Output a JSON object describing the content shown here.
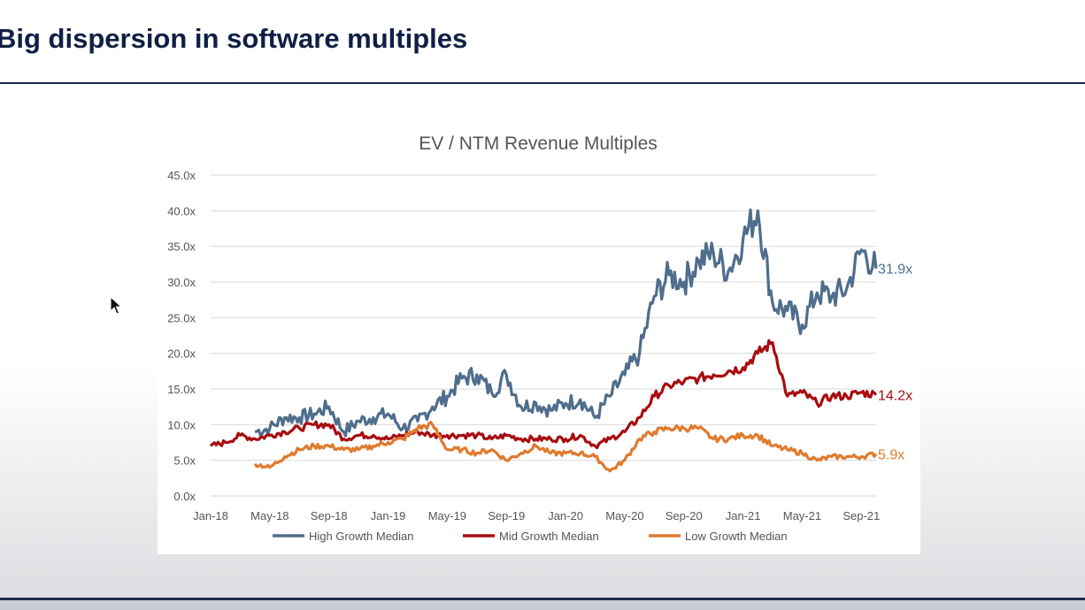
{
  "slide": {
    "title": "Big dispersion in software multiples"
  },
  "chart_data": {
    "type": "line",
    "title": "EV / NTM Revenue Multiples",
    "xlabel": "",
    "ylabel": "",
    "ylim": [
      0,
      45
    ],
    "y_ticks": [
      "0.0x",
      "5.0x",
      "10.0x",
      "15.0x",
      "20.0x",
      "25.0x",
      "30.0x",
      "35.0x",
      "40.0x",
      "45.0x"
    ],
    "x_ticks": [
      "Jan-18",
      "May-18",
      "Sep-18",
      "Jan-19",
      "May-19",
      "Sep-19",
      "Jan-20",
      "May-20",
      "Sep-20",
      "Jan-21",
      "May-21",
      "Sep-21"
    ],
    "grid": true,
    "legend_position": "bottom",
    "x": [
      "Jan-18",
      "Feb-18",
      "Mar-18",
      "Apr-18",
      "May-18",
      "Jun-18",
      "Jul-18",
      "Aug-18",
      "Sep-18",
      "Oct-18",
      "Nov-18",
      "Dec-18",
      "Jan-19",
      "Feb-19",
      "Mar-19",
      "Apr-19",
      "May-19",
      "Jun-19",
      "Jul-19",
      "Aug-19",
      "Sep-19",
      "Oct-19",
      "Nov-19",
      "Dec-19",
      "Jan-20",
      "Feb-20",
      "Mar-20",
      "Apr-20",
      "May-20",
      "Jun-20",
      "Jul-20",
      "Aug-20",
      "Sep-20",
      "Oct-20",
      "Nov-20",
      "Dec-20",
      "Jan-21",
      "Feb-21",
      "Mar-21",
      "Apr-21",
      "May-21",
      "Jun-21",
      "Jul-21",
      "Aug-21",
      "Sep-21",
      "Oct-21"
    ],
    "series": [
      {
        "name": "High Growth Median",
        "color": "#4f6d8c",
        "end_label": "31.9x",
        "start_index": 3,
        "values": [
          null,
          null,
          null,
          9.0,
          9.5,
          11.0,
          11.0,
          11.5,
          12.5,
          9.0,
          10.5,
          11.0,
          11.5,
          9.5,
          10.5,
          12.5,
          14.0,
          16.5,
          17.0,
          14.5,
          17.0,
          12.5,
          13.0,
          12.0,
          13.0,
          13.5,
          11.0,
          14.0,
          17.0,
          20.0,
          28.0,
          31.0,
          30.0,
          33.0,
          34.0,
          31.5,
          36.0,
          40.0,
          27.0,
          26.0,
          24.0,
          28.5,
          28.0,
          29.0,
          34.5,
          31.9
        ]
      },
      {
        "name": "Mid Growth Median",
        "color": "#a80d10",
        "end_label": "14.2x",
        "start_index": 0,
        "values": [
          7.0,
          7.5,
          8.5,
          8.0,
          8.5,
          9.0,
          9.5,
          10.0,
          10.0,
          8.0,
          8.5,
          8.5,
          8.0,
          8.5,
          9.0,
          8.5,
          8.5,
          8.5,
          8.5,
          8.0,
          8.5,
          8.0,
          8.0,
          8.0,
          8.0,
          8.5,
          7.0,
          8.0,
          9.0,
          11.0,
          14.0,
          15.5,
          16.0,
          16.5,
          17.0,
          17.5,
          18.0,
          20.0,
          21.5,
          14.0,
          14.5,
          13.0,
          14.0,
          14.0,
          14.5,
          14.2
        ]
      },
      {
        "name": "Low Growth Median",
        "color": "#e07b2e",
        "end_label": "5.9x",
        "start_index": 3,
        "values": [
          null,
          null,
          null,
          4.5,
          4.0,
          5.5,
          6.5,
          7.0,
          7.0,
          6.5,
          6.5,
          7.0,
          7.5,
          8.0,
          9.5,
          10.0,
          6.5,
          6.5,
          6.0,
          6.5,
          5.0,
          6.0,
          7.0,
          6.0,
          6.0,
          6.0,
          5.5,
          3.5,
          5.0,
          8.0,
          9.0,
          9.5,
          9.5,
          9.5,
          8.0,
          8.0,
          8.5,
          8.5,
          7.0,
          6.5,
          6.0,
          5.0,
          5.5,
          5.5,
          5.5,
          5.9
        ]
      }
    ]
  }
}
